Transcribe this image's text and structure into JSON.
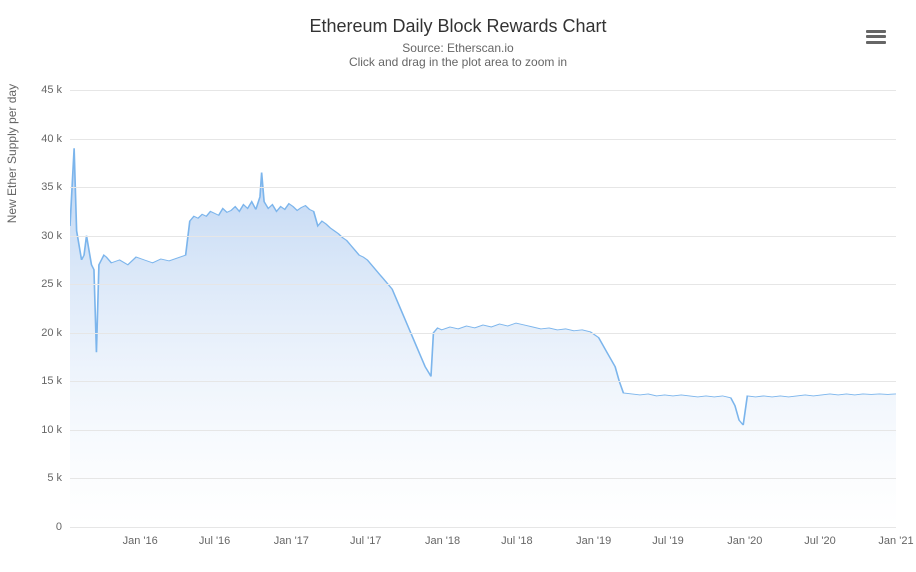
{
  "chart": {
    "type": "area",
    "title": "Ethereum Daily Block Rewards Chart",
    "subtitle_line1": "Source: Etherscan.io",
    "subtitle_line2": "Click and drag in the plot area to zoom in",
    "y_axis_label": "New Ether Supply per day",
    "title_fontsize": 18,
    "subtitle_fontsize": 12,
    "axis_label_fontsize": 12,
    "tick_label_fontsize": 11,
    "title_color": "#333333",
    "subtitle_color": "#666666",
    "tick_color": "#666666",
    "background_color": "#ffffff",
    "grid_color": "#e6e6e6",
    "area_fill_top": "#aecbf0",
    "area_fill_bottom": "#ffffff",
    "line_color": "#7cb5ec",
    "line_width": 1,
    "ylim": [
      0,
      45000
    ],
    "y_ticks": [
      0,
      5000,
      10000,
      15000,
      20000,
      25000,
      30000,
      35000,
      40000,
      45000
    ],
    "y_tick_labels": [
      "0",
      "5 k",
      "10 k",
      "15 k",
      "20 k",
      "25 k",
      "30 k",
      "35 k",
      "40 k",
      "45 k"
    ],
    "x_ticks": [
      "Jan '16",
      "Jul '16",
      "Jan '17",
      "Jul '17",
      "Jan '18",
      "Jul '18",
      "Jan '19",
      "Jul '19",
      "Jan '20",
      "Jul '20",
      "Jan '21"
    ],
    "x_tick_positions": [
      0.085,
      0.175,
      0.268,
      0.358,
      0.451,
      0.541,
      0.634,
      0.724,
      0.817,
      0.908,
      1.0
    ],
    "series": [
      {
        "x": 0.0,
        "y": 31000
      },
      {
        "x": 0.005,
        "y": 39000
      },
      {
        "x": 0.008,
        "y": 30500
      },
      {
        "x": 0.011,
        "y": 29000
      },
      {
        "x": 0.014,
        "y": 27500
      },
      {
        "x": 0.017,
        "y": 28000
      },
      {
        "x": 0.02,
        "y": 30000
      },
      {
        "x": 0.023,
        "y": 28500
      },
      {
        "x": 0.026,
        "y": 27000
      },
      {
        "x": 0.029,
        "y": 26500
      },
      {
        "x": 0.032,
        "y": 18000
      },
      {
        "x": 0.035,
        "y": 27000
      },
      {
        "x": 0.038,
        "y": 27500
      },
      {
        "x": 0.041,
        "y": 28000
      },
      {
        "x": 0.044,
        "y": 27800
      },
      {
        "x": 0.05,
        "y": 27200
      },
      {
        "x": 0.06,
        "y": 27500
      },
      {
        "x": 0.07,
        "y": 27000
      },
      {
        "x": 0.08,
        "y": 27800
      },
      {
        "x": 0.09,
        "y": 27500
      },
      {
        "x": 0.1,
        "y": 27200
      },
      {
        "x": 0.11,
        "y": 27600
      },
      {
        "x": 0.12,
        "y": 27400
      },
      {
        "x": 0.13,
        "y": 27700
      },
      {
        "x": 0.14,
        "y": 28000
      },
      {
        "x": 0.145,
        "y": 31500
      },
      {
        "x": 0.15,
        "y": 32000
      },
      {
        "x": 0.155,
        "y": 31800
      },
      {
        "x": 0.16,
        "y": 32200
      },
      {
        "x": 0.165,
        "y": 32000
      },
      {
        "x": 0.17,
        "y": 32500
      },
      {
        "x": 0.175,
        "y": 32300
      },
      {
        "x": 0.18,
        "y": 32100
      },
      {
        "x": 0.185,
        "y": 32800
      },
      {
        "x": 0.19,
        "y": 32400
      },
      {
        "x": 0.195,
        "y": 32600
      },
      {
        "x": 0.2,
        "y": 33000
      },
      {
        "x": 0.205,
        "y": 32500
      },
      {
        "x": 0.21,
        "y": 33200
      },
      {
        "x": 0.215,
        "y": 32800
      },
      {
        "x": 0.22,
        "y": 33500
      },
      {
        "x": 0.225,
        "y": 32700
      },
      {
        "x": 0.23,
        "y": 34000
      },
      {
        "x": 0.232,
        "y": 36500
      },
      {
        "x": 0.235,
        "y": 33500
      },
      {
        "x": 0.24,
        "y": 32800
      },
      {
        "x": 0.245,
        "y": 33200
      },
      {
        "x": 0.25,
        "y": 32500
      },
      {
        "x": 0.255,
        "y": 33000
      },
      {
        "x": 0.26,
        "y": 32700
      },
      {
        "x": 0.265,
        "y": 33300
      },
      {
        "x": 0.27,
        "y": 33000
      },
      {
        "x": 0.275,
        "y": 32600
      },
      {
        "x": 0.28,
        "y": 32900
      },
      {
        "x": 0.285,
        "y": 33100
      },
      {
        "x": 0.29,
        "y": 32700
      },
      {
        "x": 0.295,
        "y": 32500
      },
      {
        "x": 0.3,
        "y": 31000
      },
      {
        "x": 0.305,
        "y": 31500
      },
      {
        "x": 0.31,
        "y": 31200
      },
      {
        "x": 0.315,
        "y": 30800
      },
      {
        "x": 0.32,
        "y": 30500
      },
      {
        "x": 0.325,
        "y": 30200
      },
      {
        "x": 0.33,
        "y": 29800
      },
      {
        "x": 0.335,
        "y": 29500
      },
      {
        "x": 0.34,
        "y": 29000
      },
      {
        "x": 0.345,
        "y": 28500
      },
      {
        "x": 0.35,
        "y": 28000
      },
      {
        "x": 0.355,
        "y": 27800
      },
      {
        "x": 0.36,
        "y": 27500
      },
      {
        "x": 0.365,
        "y": 27000
      },
      {
        "x": 0.37,
        "y": 26500
      },
      {
        "x": 0.375,
        "y": 26000
      },
      {
        "x": 0.38,
        "y": 25500
      },
      {
        "x": 0.385,
        "y": 25000
      },
      {
        "x": 0.39,
        "y": 24500
      },
      {
        "x": 0.395,
        "y": 23500
      },
      {
        "x": 0.4,
        "y": 22500
      },
      {
        "x": 0.405,
        "y": 21500
      },
      {
        "x": 0.41,
        "y": 20500
      },
      {
        "x": 0.415,
        "y": 19500
      },
      {
        "x": 0.42,
        "y": 18500
      },
      {
        "x": 0.425,
        "y": 17500
      },
      {
        "x": 0.43,
        "y": 16500
      },
      {
        "x": 0.435,
        "y": 15800
      },
      {
        "x": 0.437,
        "y": 15500
      },
      {
        "x": 0.44,
        "y": 20000
      },
      {
        "x": 0.445,
        "y": 20500
      },
      {
        "x": 0.45,
        "y": 20300
      },
      {
        "x": 0.46,
        "y": 20600
      },
      {
        "x": 0.47,
        "y": 20400
      },
      {
        "x": 0.48,
        "y": 20700
      },
      {
        "x": 0.49,
        "y": 20500
      },
      {
        "x": 0.5,
        "y": 20800
      },
      {
        "x": 0.51,
        "y": 20600
      },
      {
        "x": 0.52,
        "y": 20900
      },
      {
        "x": 0.53,
        "y": 20700
      },
      {
        "x": 0.54,
        "y": 21000
      },
      {
        "x": 0.55,
        "y": 20800
      },
      {
        "x": 0.56,
        "y": 20600
      },
      {
        "x": 0.57,
        "y": 20400
      },
      {
        "x": 0.58,
        "y": 20500
      },
      {
        "x": 0.59,
        "y": 20300
      },
      {
        "x": 0.6,
        "y": 20400
      },
      {
        "x": 0.61,
        "y": 20200
      },
      {
        "x": 0.62,
        "y": 20300
      },
      {
        "x": 0.63,
        "y": 20100
      },
      {
        "x": 0.64,
        "y": 19500
      },
      {
        "x": 0.65,
        "y": 18000
      },
      {
        "x": 0.66,
        "y": 16500
      },
      {
        "x": 0.665,
        "y": 15000
      },
      {
        "x": 0.67,
        "y": 13800
      },
      {
        "x": 0.68,
        "y": 13700
      },
      {
        "x": 0.69,
        "y": 13600
      },
      {
        "x": 0.7,
        "y": 13700
      },
      {
        "x": 0.71,
        "y": 13500
      },
      {
        "x": 0.72,
        "y": 13600
      },
      {
        "x": 0.73,
        "y": 13500
      },
      {
        "x": 0.74,
        "y": 13600
      },
      {
        "x": 0.75,
        "y": 13500
      },
      {
        "x": 0.76,
        "y": 13400
      },
      {
        "x": 0.77,
        "y": 13500
      },
      {
        "x": 0.78,
        "y": 13400
      },
      {
        "x": 0.79,
        "y": 13500
      },
      {
        "x": 0.8,
        "y": 13300
      },
      {
        "x": 0.805,
        "y": 12500
      },
      {
        "x": 0.81,
        "y": 11000
      },
      {
        "x": 0.815,
        "y": 10500
      },
      {
        "x": 0.82,
        "y": 13500
      },
      {
        "x": 0.83,
        "y": 13400
      },
      {
        "x": 0.84,
        "y": 13500
      },
      {
        "x": 0.85,
        "y": 13400
      },
      {
        "x": 0.86,
        "y": 13500
      },
      {
        "x": 0.87,
        "y": 13400
      },
      {
        "x": 0.88,
        "y": 13500
      },
      {
        "x": 0.89,
        "y": 13600
      },
      {
        "x": 0.9,
        "y": 13500
      },
      {
        "x": 0.91,
        "y": 13600
      },
      {
        "x": 0.92,
        "y": 13700
      },
      {
        "x": 0.93,
        "y": 13600
      },
      {
        "x": 0.94,
        "y": 13700
      },
      {
        "x": 0.95,
        "y": 13600
      },
      {
        "x": 0.96,
        "y": 13700
      },
      {
        "x": 0.97,
        "y": 13650
      },
      {
        "x": 0.98,
        "y": 13700
      },
      {
        "x": 0.99,
        "y": 13650
      },
      {
        "x": 1.0,
        "y": 13700
      }
    ]
  }
}
